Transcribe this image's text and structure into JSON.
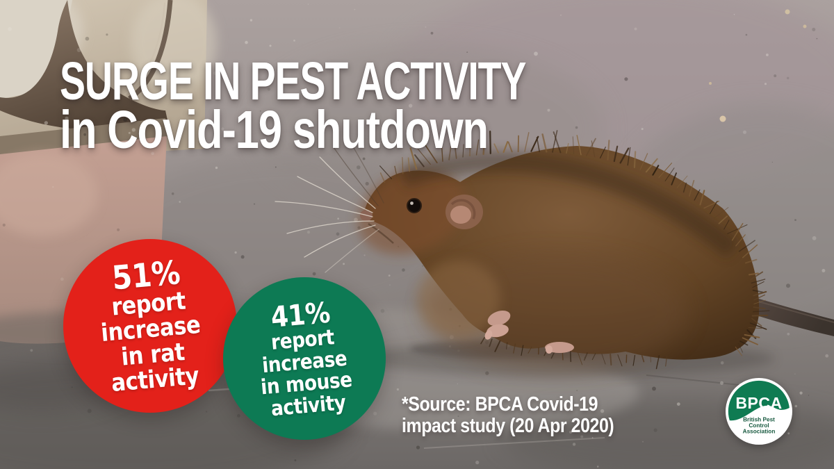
{
  "headline": {
    "line1": "SURGE IN PEST ACTIVITY",
    "line2": "in Covid-19 shutdown"
  },
  "stats": [
    {
      "subject": "rat",
      "percent": "51%",
      "line1": "report",
      "line2": "increase",
      "line3": "in rat",
      "line4": "activity",
      "color": "#e3211a"
    },
    {
      "subject": "mouse",
      "percent": "41%",
      "line1": "report",
      "line2": "increase",
      "line3": "in mouse",
      "line4": "activity",
      "color": "#0d7a54"
    }
  ],
  "source": {
    "line1": "*Source: BPCA Covid-19",
    "line2": "impact study (20 Apr 2020)"
  },
  "logo": {
    "acronym": "BPCA",
    "name_line1": "British Pest",
    "name_line2": "Control",
    "name_line3": "Association",
    "green": "#0f7b52",
    "text_green": "#17593f"
  }
}
